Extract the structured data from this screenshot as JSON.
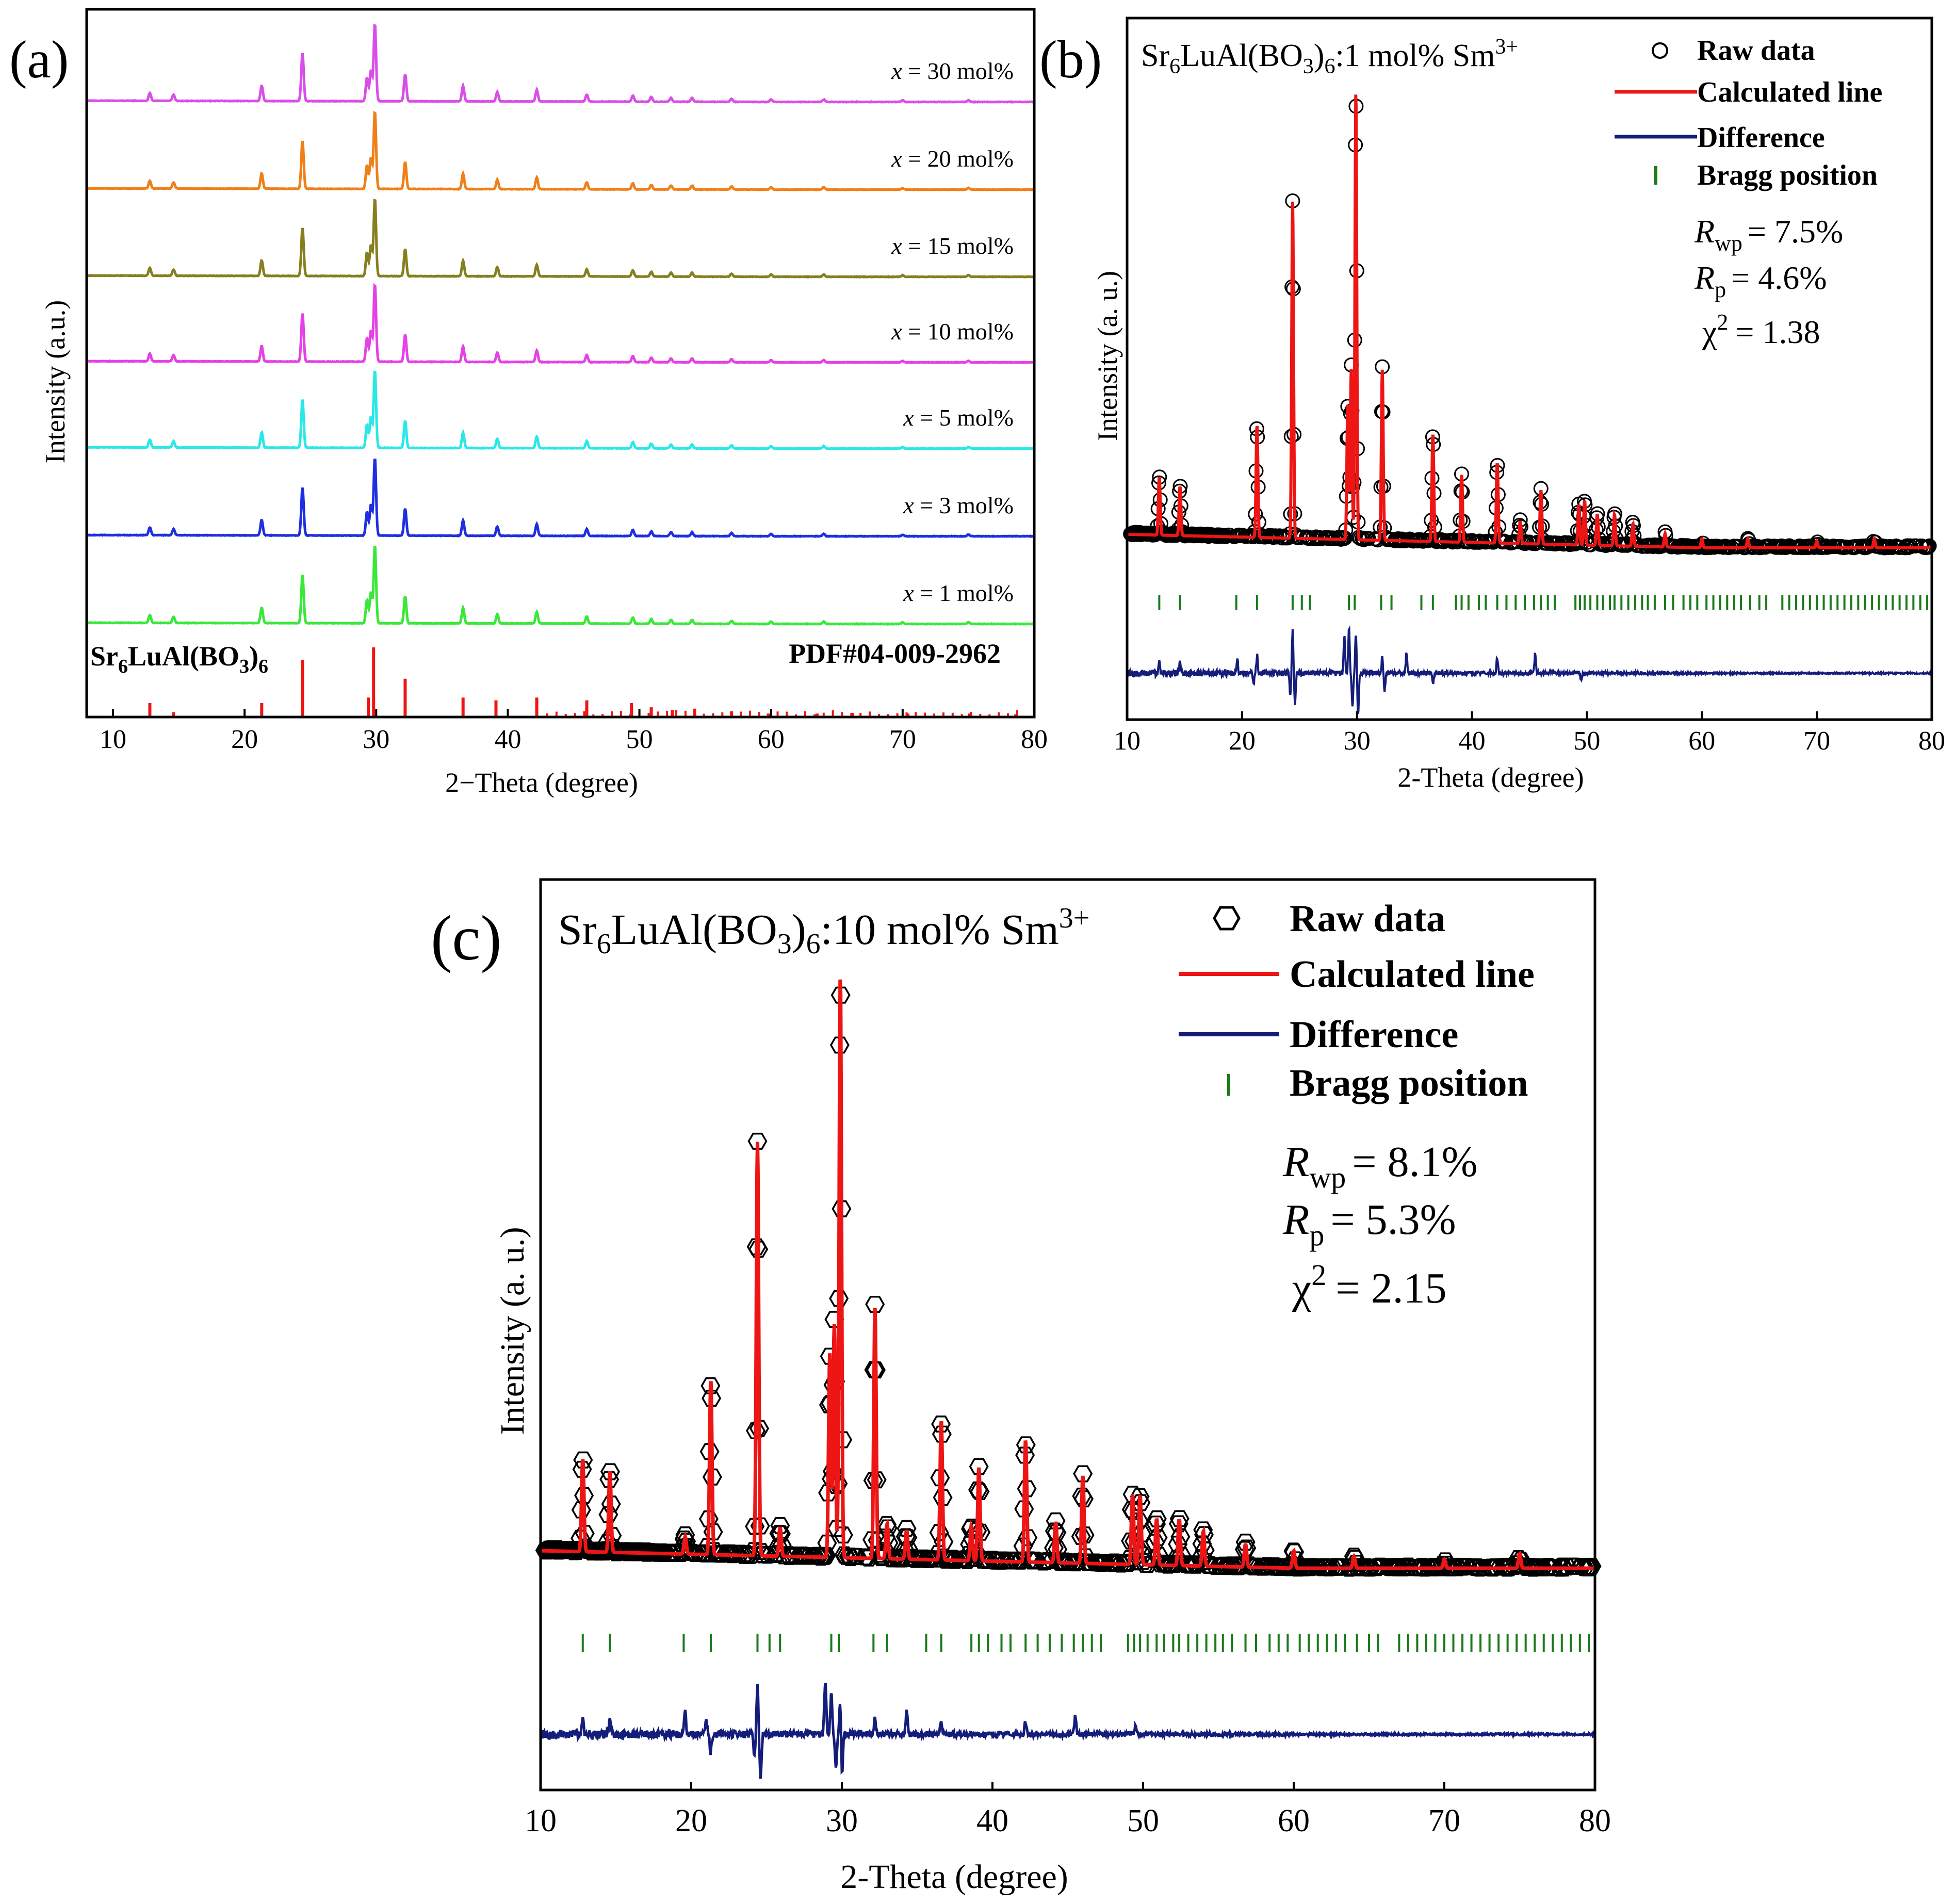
{
  "colors": {
    "x30": "#d94ee8",
    "x20": "#f07f18",
    "x15": "#857f1e",
    "x10": "#e640e6",
    "x5": "#28e8e8",
    "x3": "#1e2ee0",
    "x1": "#3ae83a",
    "reference": "#ee1515",
    "calculated": "#ee1515",
    "difference": "#141d7a",
    "bragg": "#1a7a1a",
    "raw": "#000000"
  },
  "chart_data": [
    {
      "id": "a",
      "panel_label": "(a)",
      "type": "line",
      "title": "",
      "xlabel": "2−Theta (degree)",
      "ylabel": "Intensity (a.u.)",
      "xlim": [
        8,
        80
      ],
      "xticks": [
        10,
        20,
        30,
        40,
        50,
        60,
        70,
        80
      ],
      "tick_labels": [
        "10",
        "20",
        "30",
        "40",
        "50",
        "60",
        "70",
        "80"
      ],
      "reference": {
        "name": "Sr6LuAl(BO3)6",
        "name_base": "Sr",
        "name_sub1": "6",
        "name_mid": "LuAl(BO",
        "name_sub2": "3",
        "name_close": ")",
        "name_sub3": "6",
        "card": "PDF#04-009-2962",
        "peaks": [
          [
            12.8,
            0.2
          ],
          [
            14.6,
            0.07
          ],
          [
            21.3,
            0.2
          ],
          [
            24.4,
            0.82
          ],
          [
            29.4,
            0.28
          ],
          [
            29.8,
            1.0
          ],
          [
            32.2,
            0.55
          ],
          [
            36.6,
            0.28
          ],
          [
            39.1,
            0.24
          ],
          [
            42.2,
            0.28
          ],
          [
            46.0,
            0.24
          ],
          [
            49.4,
            0.2
          ],
          [
            50.9,
            0.14
          ],
          [
            52.5,
            0.1
          ],
          [
            54.2,
            0.12
          ],
          [
            57.0,
            0.08
          ],
          [
            59.8,
            0.05
          ],
          [
            63.5,
            0.05
          ],
          [
            66.2,
            0.06
          ],
          [
            70.4,
            0.05
          ],
          [
            75.1,
            0.05
          ],
          [
            78.6,
            0.04
          ]
        ]
      },
      "series": [
        {
          "name": "x = 30 mol%",
          "label_var": "x",
          "label_rest": " = 30 mol%",
          "color_key": "x30"
        },
        {
          "name": "x = 20 mol%",
          "label_var": "x",
          "label_rest": " = 20 mol%",
          "color_key": "x20"
        },
        {
          "name": "x = 15 mol%",
          "label_var": "x",
          "label_rest": " = 15 mol%",
          "color_key": "x15"
        },
        {
          "name": "x = 10 mol%",
          "label_var": "x",
          "label_rest": " = 10 mol%",
          "color_key": "x10"
        },
        {
          "name": "x = 5 mol%",
          "label_var": "x",
          "label_rest": " = 5 mol%",
          "color_key": "x5"
        },
        {
          "name": "x = 3 mol%",
          "label_var": "x",
          "label_rest": " = 3 mol%",
          "color_key": "x3"
        },
        {
          "name": "x = 1 mol%",
          "label_var": "x",
          "label_rest": " = 1 mol%",
          "color_key": "x1"
        }
      ],
      "pattern_peaks": [
        [
          12.8,
          0.1
        ],
        [
          14.6,
          0.08
        ],
        [
          21.3,
          0.2
        ],
        [
          24.4,
          0.62
        ],
        [
          29.3,
          0.3
        ],
        [
          29.6,
          0.4
        ],
        [
          29.9,
          1.0
        ],
        [
          32.2,
          0.35
        ],
        [
          36.6,
          0.2
        ],
        [
          39.2,
          0.12
        ],
        [
          42.2,
          0.15
        ],
        [
          46.0,
          0.09
        ],
        [
          49.5,
          0.08
        ],
        [
          50.9,
          0.06
        ],
        [
          52.4,
          0.05
        ],
        [
          54.0,
          0.05
        ],
        [
          57.0,
          0.04
        ],
        [
          60.0,
          0.03
        ],
        [
          64.0,
          0.03
        ],
        [
          70.0,
          0.02
        ],
        [
          75.0,
          0.02
        ]
      ]
    },
    {
      "id": "b",
      "panel_label": "(b)",
      "type": "line",
      "title": "Sr6LuAl(BO3)6:1 mol% Sm3+",
      "title_parts": {
        "a": "Sr",
        "s1": "6",
        "b": "LuAl(BO",
        "s2": "3",
        "c": ")",
        "s3": "6",
        "d": ":1 mol% Sm",
        "sup": "3+"
      },
      "xlabel": "2-Theta (degree)",
      "ylabel": "Intensity (a. u.)",
      "xlim": [
        10,
        80
      ],
      "xticks": [
        10,
        20,
        30,
        40,
        50,
        60,
        70,
        80
      ],
      "tick_labels": [
        "10",
        "20",
        "30",
        "40",
        "50",
        "60",
        "70",
        "80"
      ],
      "legend": [
        "Raw data",
        "Calculated line",
        "Difference",
        "Bragg position"
      ],
      "stats": {
        "Rwp": "= 7.5%",
        "Rp": "= 4.6%",
        "chi2": "= 1.38"
      },
      "stat_symbols": {
        "R": "R",
        "wp": "wp",
        "p": "p",
        "chi": "χ",
        "sq": "2"
      },
      "peaks": [
        [
          12.8,
          0.13
        ],
        [
          14.6,
          0.11
        ],
        [
          21.3,
          0.25
        ],
        [
          24.4,
          0.75
        ],
        [
          29.2,
          0.3
        ],
        [
          29.5,
          0.38
        ],
        [
          29.9,
          1.0
        ],
        [
          32.2,
          0.38
        ],
        [
          36.6,
          0.24
        ],
        [
          39.1,
          0.15
        ],
        [
          42.2,
          0.18
        ],
        [
          44.2,
          0.05
        ],
        [
          46.0,
          0.12
        ],
        [
          49.3,
          0.09
        ],
        [
          49.8,
          0.1
        ],
        [
          50.9,
          0.07
        ],
        [
          52.4,
          0.07
        ],
        [
          54.0,
          0.05
        ],
        [
          56.8,
          0.03
        ],
        [
          60.0,
          0.02
        ],
        [
          64.0,
          0.02
        ],
        [
          70.0,
          0.015
        ],
        [
          75.0,
          0.02
        ]
      ],
      "bragg": [
        12.8,
        14.6,
        19.5,
        21.3,
        24.4,
        25.2,
        25.9,
        29.3,
        29.8,
        32.1,
        33.0,
        35.6,
        36.6,
        38.6,
        39.1,
        39.7,
        40.6,
        41.2,
        42.2,
        43.0,
        43.8,
        44.6,
        45.4,
        46.0,
        46.6,
        47.2,
        49.0,
        49.4,
        49.8,
        50.3,
        50.9,
        51.4,
        52.0,
        52.4,
        53.0,
        53.6,
        54.2,
        54.8,
        55.3,
        55.9,
        56.8,
        57.5,
        58.4,
        59.0,
        59.6,
        60.4,
        61.0,
        61.6,
        62.2,
        62.8,
        63.4,
        64.2,
        65.0,
        65.6,
        67.0,
        67.6,
        68.2,
        68.8,
        69.4,
        70.0,
        70.6,
        71.2,
        71.8,
        72.4,
        73.0,
        73.6,
        74.2,
        74.8,
        75.4,
        76.0,
        76.6,
        77.2,
        77.8,
        78.4,
        79.0,
        79.6
      ],
      "difference": [
        [
          12.8,
          0.5
        ],
        [
          14.6,
          0.5
        ],
        [
          19.6,
          0.6
        ],
        [
          21.0,
          -0.6
        ],
        [
          21.3,
          0.9
        ],
        [
          24.2,
          -1.2
        ],
        [
          24.4,
          2.2
        ],
        [
          24.6,
          -1.6
        ],
        [
          28.9,
          1.9
        ],
        [
          29.3,
          2.3
        ],
        [
          29.6,
          -1.7
        ],
        [
          29.9,
          2.0
        ],
        [
          30.1,
          -2.2
        ],
        [
          32.2,
          0.8
        ],
        [
          32.4,
          -0.9
        ],
        [
          34.3,
          1.0
        ],
        [
          36.6,
          -0.5
        ],
        [
          42.2,
          0.8
        ],
        [
          45.5,
          1.0
        ],
        [
          49.5,
          -0.4
        ]
      ]
    },
    {
      "id": "c",
      "panel_label": "(c)",
      "type": "line",
      "title": "Sr6LuAl(BO3)6:10 mol% Sm3+",
      "title_parts": {
        "a": "Sr",
        "s1": "6",
        "b": "LuAl(BO",
        "s2": "3",
        "c": ")",
        "s3": "6",
        "d": ":10 mol% Sm",
        "sup": "3+"
      },
      "xlabel": "2-Theta (degree)",
      "ylabel": "Intensity (a. u.)",
      "xlim": [
        10,
        80
      ],
      "xticks": [
        10,
        20,
        30,
        40,
        50,
        60,
        70,
        80
      ],
      "tick_labels": [
        "10",
        "20",
        "30",
        "40",
        "50",
        "60",
        "70",
        "80"
      ],
      "legend": [
        "Raw data",
        "Calculated line",
        "Difference",
        "Bragg position"
      ],
      "stats": {
        "Rwp": "= 8.1%",
        "Rp": "= 5.3%",
        "chi2": "= 2.15"
      },
      "stat_symbols": {
        "R": "R",
        "wp": "wp",
        "p": "p",
        "chi": "χ",
        "sq": "2"
      },
      "peaks": [
        [
          12.8,
          0.16
        ],
        [
          14.6,
          0.14
        ],
        [
          19.6,
          0.03
        ],
        [
          21.3,
          0.3
        ],
        [
          24.4,
          0.71
        ],
        [
          25.9,
          0.05
        ],
        [
          29.2,
          0.35
        ],
        [
          29.5,
          0.4
        ],
        [
          29.9,
          1.0
        ],
        [
          32.2,
          0.43
        ],
        [
          33.0,
          0.06
        ],
        [
          34.3,
          0.05
        ],
        [
          36.6,
          0.24
        ],
        [
          38.6,
          0.06
        ],
        [
          39.1,
          0.16
        ],
        [
          42.2,
          0.21
        ],
        [
          44.2,
          0.07
        ],
        [
          46.0,
          0.15
        ],
        [
          49.3,
          0.12
        ],
        [
          49.8,
          0.12
        ],
        [
          50.9,
          0.08
        ],
        [
          52.4,
          0.08
        ],
        [
          54.0,
          0.06
        ],
        [
          56.8,
          0.04
        ],
        [
          60.0,
          0.03
        ],
        [
          64.0,
          0.02
        ],
        [
          70.0,
          0.015
        ],
        [
          75.0,
          0.025
        ]
      ],
      "bragg": [
        12.8,
        14.6,
        19.5,
        21.3,
        24.4,
        25.2,
        25.9,
        29.3,
        29.8,
        32.1,
        33.0,
        35.6,
        36.6,
        38.6,
        39.1,
        39.7,
        40.6,
        41.2,
        42.2,
        43.0,
        43.8,
        44.6,
        45.4,
        46.0,
        46.6,
        47.2,
        49.0,
        49.4,
        49.8,
        50.3,
        50.9,
        51.4,
        52.0,
        52.4,
        53.0,
        53.6,
        54.2,
        54.8,
        55.3,
        55.9,
        56.8,
        57.5,
        58.4,
        59.0,
        59.6,
        60.4,
        61.0,
        61.6,
        62.2,
        62.8,
        63.4,
        64.2,
        65.0,
        65.6,
        67.0,
        67.6,
        68.2,
        68.8,
        69.4,
        70.0,
        70.6,
        71.2,
        71.8,
        72.4,
        73.0,
        73.6,
        74.2,
        74.8,
        75.4,
        76.0,
        76.6,
        77.2,
        77.8,
        78.4,
        79.0,
        79.6
      ],
      "difference": [
        [
          12.8,
          0.5
        ],
        [
          14.6,
          0.5
        ],
        [
          19.6,
          0.8
        ],
        [
          21.0,
          0.5
        ],
        [
          21.3,
          -0.7
        ],
        [
          24.2,
          -0.9
        ],
        [
          24.4,
          1.9
        ],
        [
          24.6,
          -1.7
        ],
        [
          28.9,
          2.0
        ],
        [
          29.3,
          1.6
        ],
        [
          29.6,
          -1.3
        ],
        [
          29.9,
          1.6
        ],
        [
          30.0,
          -1.8
        ],
        [
          32.2,
          0.6
        ],
        [
          34.3,
          0.9
        ],
        [
          36.6,
          0.5
        ],
        [
          42.2,
          0.5
        ],
        [
          45.5,
          0.7
        ],
        [
          49.5,
          0.3
        ]
      ]
    }
  ]
}
